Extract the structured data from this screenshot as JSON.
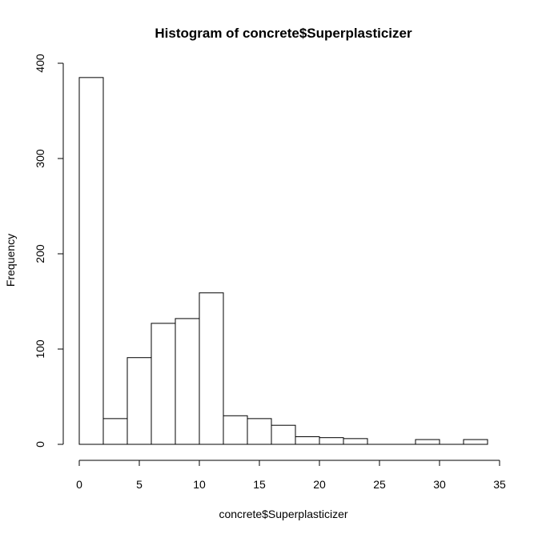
{
  "chart_data": {
    "type": "bar",
    "title": "Histogram of concrete$Superplasticizer",
    "xlabel": "concrete$Superplasticizer",
    "ylabel": "Frequency",
    "xlim": [
      0,
      35
    ],
    "ylim": [
      0,
      400
    ],
    "x_ticks": [
      "0",
      "5",
      "10",
      "15",
      "20",
      "25",
      "30",
      "35"
    ],
    "y_ticks": [
      "0",
      "100",
      "200",
      "300",
      "400"
    ],
    "bins": [
      {
        "start": 0,
        "end": 2,
        "count": 385
      },
      {
        "start": 2,
        "end": 4,
        "count": 27
      },
      {
        "start": 4,
        "end": 6,
        "count": 91
      },
      {
        "start": 6,
        "end": 8,
        "count": 127
      },
      {
        "start": 8,
        "end": 10,
        "count": 132
      },
      {
        "start": 10,
        "end": 12,
        "count": 159
      },
      {
        "start": 12,
        "end": 14,
        "count": 30
      },
      {
        "start": 14,
        "end": 16,
        "count": 27
      },
      {
        "start": 16,
        "end": 18,
        "count": 20
      },
      {
        "start": 18,
        "end": 20,
        "count": 8
      },
      {
        "start": 20,
        "end": 22,
        "count": 7
      },
      {
        "start": 22,
        "end": 24,
        "count": 6
      },
      {
        "start": 24,
        "end": 26,
        "count": 0
      },
      {
        "start": 26,
        "end": 28,
        "count": 0
      },
      {
        "start": 28,
        "end": 30,
        "count": 5
      },
      {
        "start": 30,
        "end": 32,
        "count": 0
      },
      {
        "start": 32,
        "end": 34,
        "count": 5
      }
    ],
    "bar_fill": "#ffffff",
    "bar_stroke": "#000000",
    "grid": false,
    "legend": "none"
  }
}
